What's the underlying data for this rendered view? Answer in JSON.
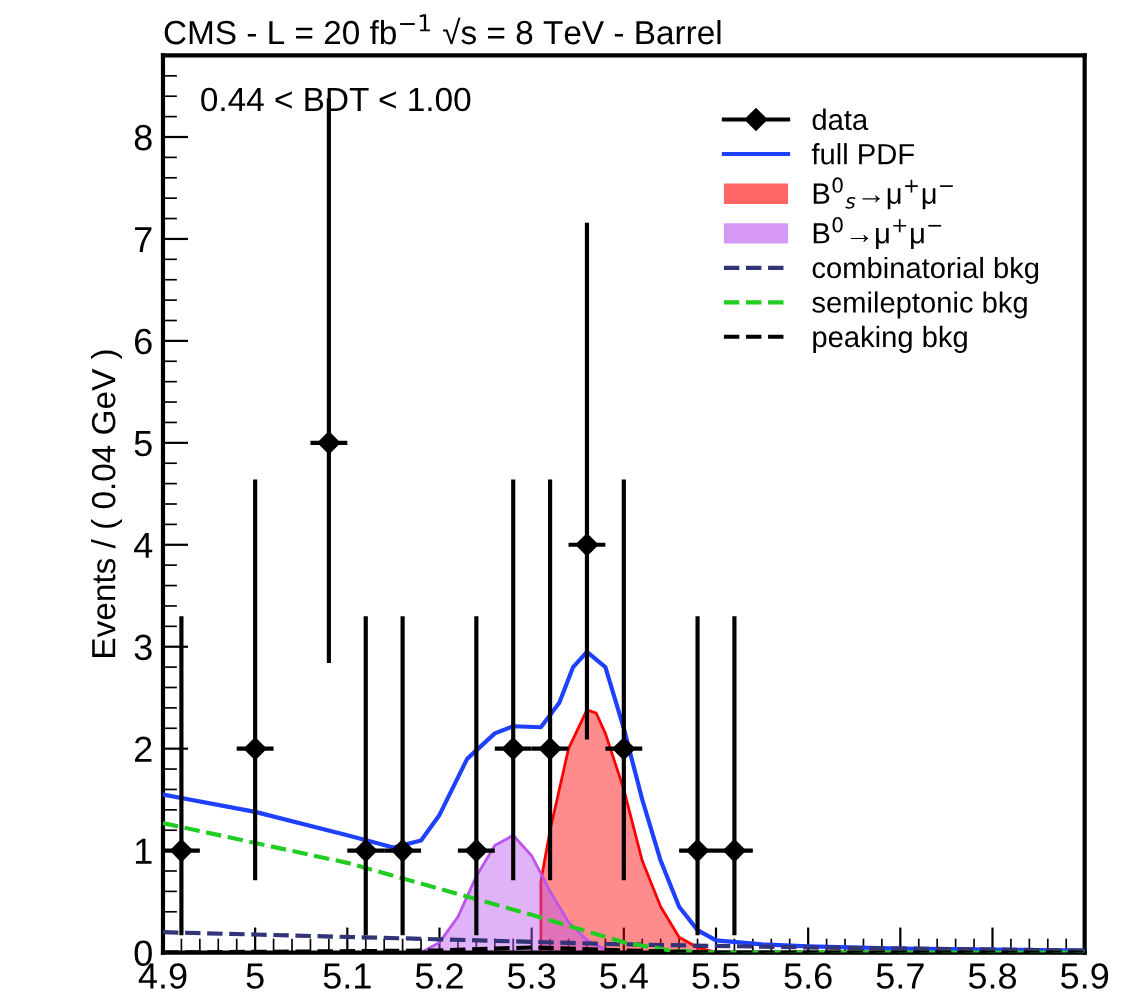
{
  "chart_data": {
    "type": "line",
    "title": "CMS - L = 20 fb$^{−1}$ √s = 8 TeV - Barrel",
    "ylabel": "Events / ( 0.04 GeV )",
    "annotations": [
      "0.44 < BDT < 1.00"
    ],
    "xlim": [
      4.9,
      5.9
    ],
    "ylim": [
      0,
      8.8
    ],
    "xticks": [
      4.9,
      5,
      5.1,
      5.2,
      5.3,
      5.4,
      5.5,
      5.6,
      5.7,
      5.8,
      5.9
    ],
    "yticks": [
      0,
      1,
      2,
      3,
      4,
      5,
      6,
      7,
      8
    ],
    "grid": false,
    "legend": "top right",
    "series": [
      {
        "name": "data",
        "type": "scatter",
        "color": "#000000",
        "marker": "diamond",
        "x": [
          4.92,
          5.0,
          5.08,
          5.12,
          5.16,
          5.24,
          5.28,
          5.32,
          5.36,
          5.4,
          5.48,
          5.52
        ],
        "values": [
          1,
          2,
          5,
          1,
          1,
          1,
          2,
          2,
          4,
          2,
          1,
          1
        ],
        "errors": [
          [
            0.17,
            3.3
          ],
          [
            0.71,
            4.64
          ],
          [
            2.84,
            8.38
          ],
          [
            0.17,
            3.3
          ],
          [
            0.17,
            3.3
          ],
          [
            0.17,
            3.3
          ],
          [
            0.71,
            4.64
          ],
          [
            0.71,
            4.64
          ],
          [
            2.09,
            7.16
          ],
          [
            0.71,
            4.64
          ],
          [
            0.17,
            3.3
          ],
          [
            0.17,
            3.3
          ]
        ],
        "xerrors": [
          0.02,
          0.02,
          0.02,
          0.02,
          0.02,
          0.02,
          0.02,
          0.02,
          0.02,
          0.02,
          0.02,
          0.02
        ]
      },
      {
        "name": "full PDF",
        "color": "#2040ff",
        "line_style": "solid",
        "x": [
          4.9,
          5.0,
          5.1,
          5.15,
          5.18,
          5.2,
          5.23,
          5.26,
          5.28,
          5.31,
          5.33,
          5.345,
          5.36,
          5.38,
          5.4,
          5.42,
          5.44,
          5.46,
          5.48,
          5.5,
          5.55,
          5.6,
          5.7,
          5.8,
          5.9
        ],
        "values": [
          1.55,
          1.38,
          1.15,
          1.03,
          1.1,
          1.35,
          1.9,
          2.15,
          2.22,
          2.21,
          2.45,
          2.8,
          2.95,
          2.8,
          2.2,
          1.5,
          0.9,
          0.45,
          0.22,
          0.12,
          0.08,
          0.06,
          0.04,
          0.03,
          0.02
        ]
      },
      {
        "name": "B$^{0}$$_{s}$→μ$^{+}$μ$^{−}$",
        "type": "area",
        "color": "#ff0000",
        "x": [
          5.31,
          5.31,
          5.32,
          5.34,
          5.36,
          5.37,
          5.38,
          5.4,
          5.42,
          5.44,
          5.46,
          5.48,
          5.5
        ],
        "values": [
          0,
          0.7,
          1.2,
          2.0,
          2.38,
          2.35,
          2.15,
          1.6,
          0.9,
          0.45,
          0.15,
          0.05,
          0
        ]
      },
      {
        "name": "B$^{0}$→μ$^{+}$μ$^{−}$",
        "type": "area",
        "color": "#bb55ee",
        "x": [
          5.18,
          5.2,
          5.22,
          5.24,
          5.26,
          5.28,
          5.3,
          5.32,
          5.34,
          5.36,
          5.38,
          5.4
        ],
        "values": [
          0,
          0.1,
          0.35,
          0.75,
          1.05,
          1.15,
          0.95,
          0.6,
          0.3,
          0.12,
          0.03,
          0
        ]
      },
      {
        "name": "combinatorial bkg",
        "color": "#333377",
        "line_style": "dashed",
        "x": [
          4.9,
          5.2,
          5.4,
          5.6,
          5.9
        ],
        "values": [
          0.2,
          0.13,
          0.08,
          0.05,
          0.02
        ]
      },
      {
        "name": "semileptonic bkg",
        "color": "#22cc22",
        "line_style": "dashed",
        "x": [
          4.9,
          5.1,
          5.3,
          5.4,
          5.45,
          5.5,
          5.9
        ],
        "values": [
          1.27,
          0.88,
          0.37,
          0.1,
          0.02,
          0,
          0
        ]
      },
      {
        "name": "peaking bkg",
        "color": "#000000",
        "line_style": "dashed",
        "x": [
          4.9,
          5.2,
          5.3,
          5.4,
          5.5,
          5.9
        ],
        "values": [
          0,
          0.02,
          0.05,
          0.02,
          0,
          0
        ]
      }
    ]
  }
}
